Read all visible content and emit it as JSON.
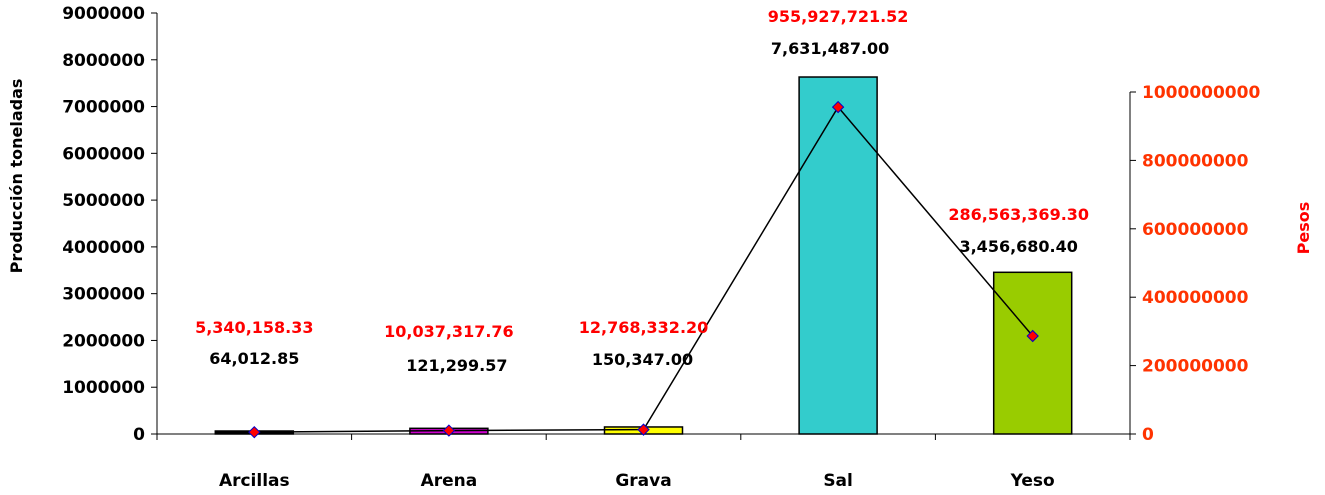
{
  "chart_data": {
    "type": "bar",
    "categories": [
      "Arcillas",
      "Arena",
      "Grava",
      "Sal",
      "Yeso"
    ],
    "series": [
      {
        "axis": "left",
        "kind": "bar",
        "values": [
          64012.85,
          121299.57,
          150347.0,
          7631487.0,
          3456680.4
        ],
        "labels": [
          "64,012.85",
          "121,299.57",
          "150,347.00",
          "7,631,487.00",
          "3,456,680.40"
        ],
        "colors": [
          "#000000",
          "#cc00cc",
          "#ffff00",
          "#33cccc",
          "#99cc00"
        ]
      },
      {
        "axis": "right",
        "kind": "line",
        "values": [
          5340158.33,
          10037317.76,
          12768332.2,
          955927721.52,
          286563369.3
        ],
        "labels": [
          "5,340,158.33",
          "10,037,317.76",
          "12,768,332.20",
          "955,927,721.52",
          "286,563,369.30"
        ],
        "color": "#000000",
        "marker_color": "#ff0000"
      }
    ],
    "ylabel": "Producción toneladas",
    "y2label": "Pesos",
    "ylim": [
      0,
      9000000
    ],
    "y2lim": [
      0,
      1000000000
    ],
    "yticks": [
      "0",
      "1000000",
      "2000000",
      "3000000",
      "4000000",
      "5000000",
      "6000000",
      "7000000",
      "8000000",
      "9000000"
    ],
    "y2ticks": [
      "0",
      "200000000",
      "400000000",
      "600000000",
      "800000000",
      "1000000000"
    ],
    "grid": false
  }
}
